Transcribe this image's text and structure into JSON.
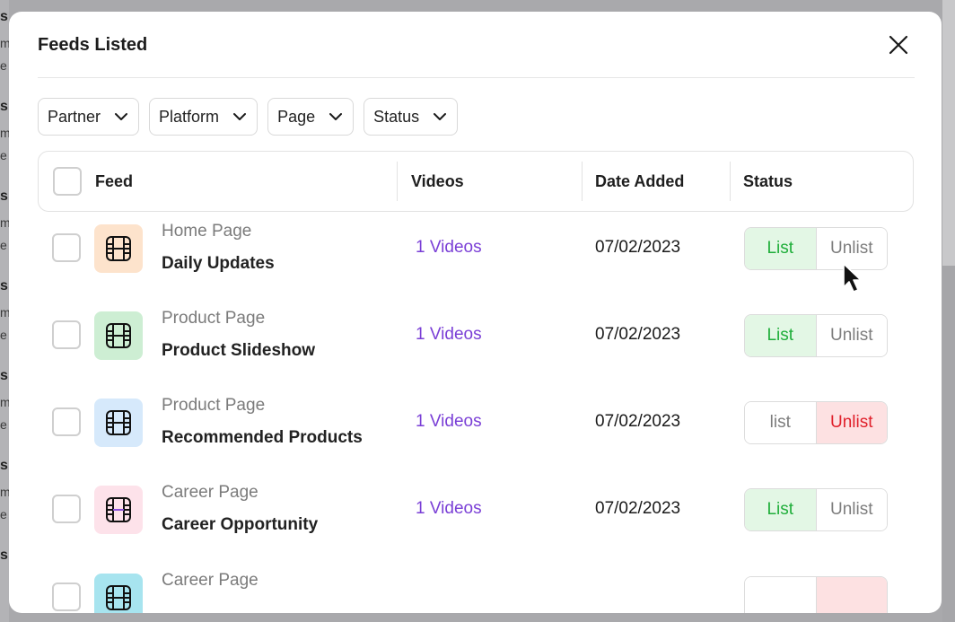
{
  "background": {
    "fragments": [
      "s",
      "m",
      "e",
      "s",
      "m",
      "e",
      "s",
      "m",
      "e",
      "s",
      "m",
      "e",
      "s",
      "m",
      "e",
      "s",
      "m",
      "e",
      "s"
    ]
  },
  "modal": {
    "title": "Feeds Listed",
    "filters": [
      {
        "label": "Partner"
      },
      {
        "label": "Platform"
      },
      {
        "label": "Page"
      },
      {
        "label": "Status"
      }
    ],
    "table": {
      "headers": {
        "feed": "Feed",
        "videos": "Videos",
        "date_added": "Date Added",
        "status": "Status"
      },
      "rows": [
        {
          "page": "Home Page",
          "feed": "Daily Updates",
          "videos": "1 Videos",
          "date": "07/02/2023",
          "list_label": "List",
          "unlist_label": "Unlist",
          "status": "list",
          "icon_bg": "#fde3cc"
        },
        {
          "page": "Product Page",
          "feed": "Product Slideshow",
          "videos": "1 Videos",
          "date": "07/02/2023",
          "list_label": "List",
          "unlist_label": "Unlist",
          "status": "list",
          "icon_bg": "#cdeed3"
        },
        {
          "page": "Product Page",
          "feed": "Recommended Products",
          "videos": "1 Videos",
          "date": "07/02/2023",
          "list_label": "list",
          "unlist_label": "Unlist",
          "status": "unlist",
          "icon_bg": "#d6e9fb"
        },
        {
          "page": "Career Page",
          "feed": "Career Opportunity",
          "videos": "1 Videos",
          "date": "07/02/2023",
          "list_label": "List",
          "unlist_label": "Unlist",
          "status": "list",
          "icon_bg": "#fde2ea"
        },
        {
          "page": "Career Page",
          "feed": "",
          "videos": "",
          "date": "",
          "list_label": "",
          "unlist_label": "",
          "status": "unlist",
          "icon_bg": "#a7e4ef"
        }
      ]
    }
  },
  "colors": {
    "accent_purple": "#7a3fd6",
    "list_green": "#1fae3a",
    "list_bg": "#e3f7e5",
    "unlist_red": "#e01f2a",
    "unlist_bg": "#fde1e2"
  }
}
